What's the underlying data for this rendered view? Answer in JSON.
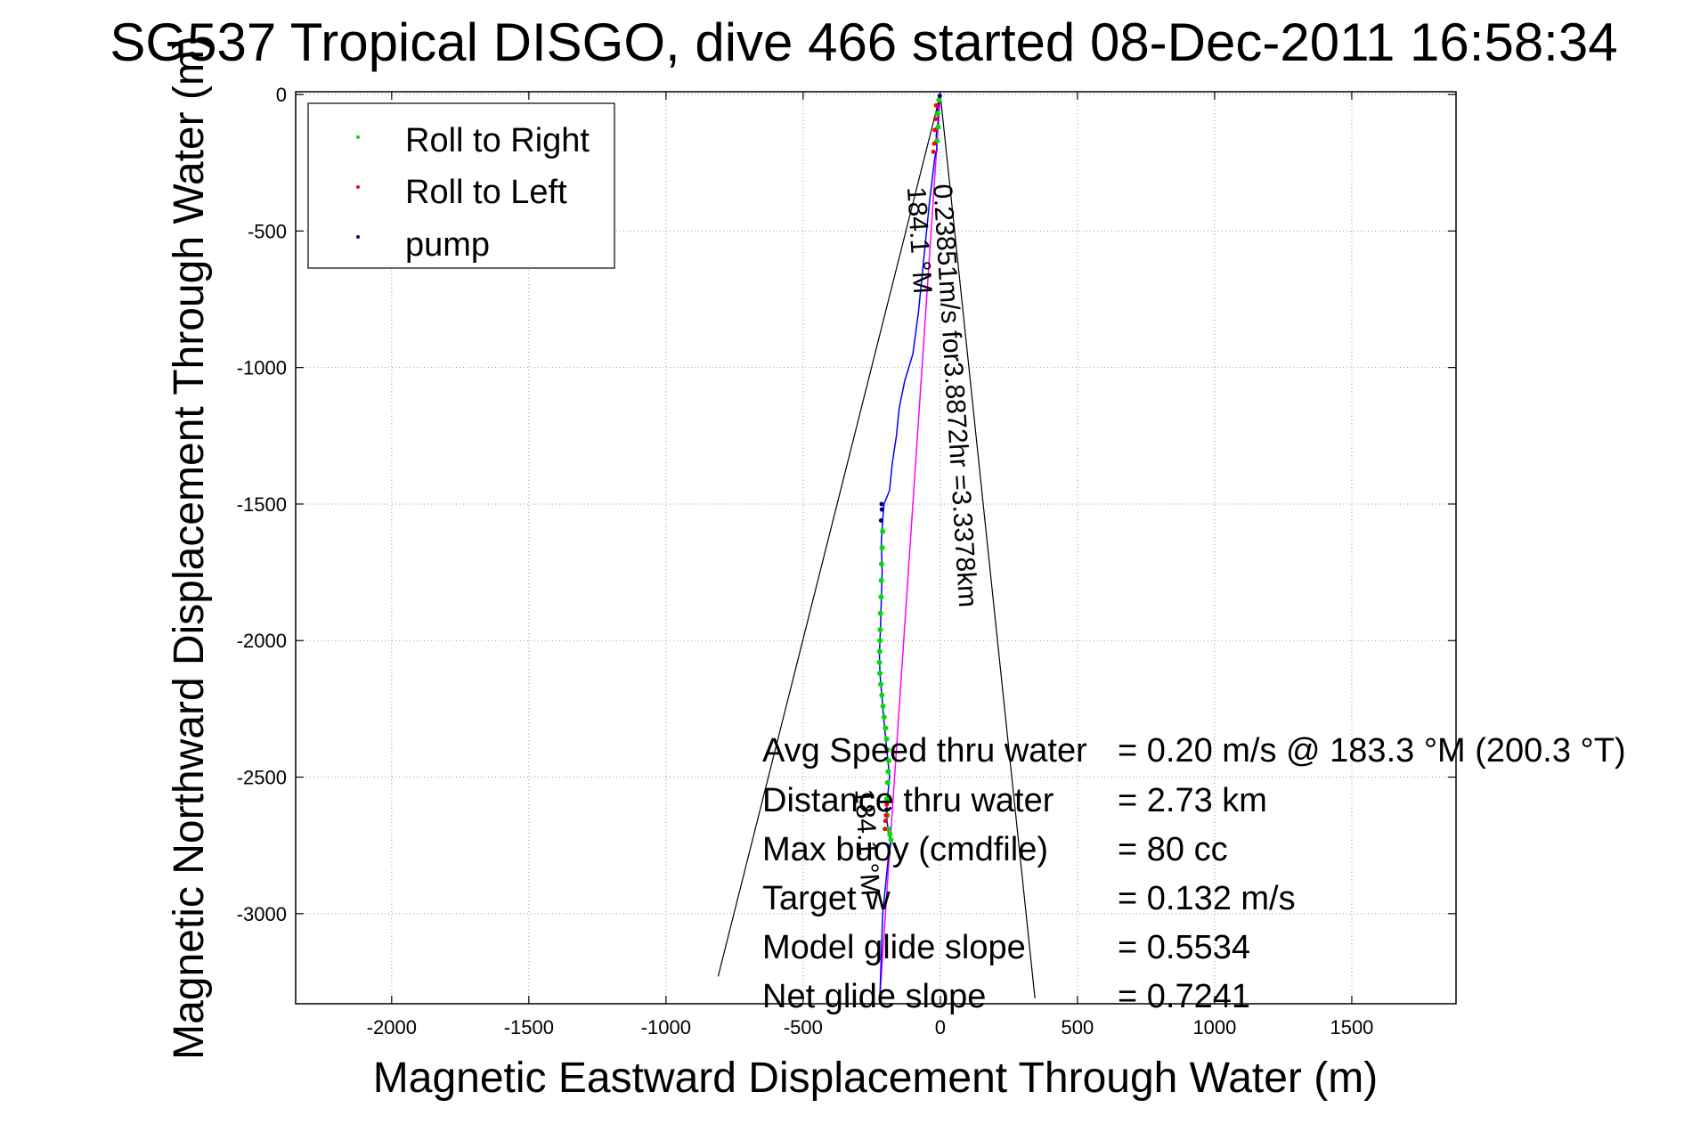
{
  "chart_data": {
    "type": "scatter",
    "title": "SG537 Tropical DISGO, dive 466 started 08-Dec-2011 16:58:34",
    "xlabel": "Magnetic Eastward Displacement Through Water (m)",
    "ylabel": "Magnetic Northward Displacement Through Water (m)",
    "xlim": [
      -2350,
      1880
    ],
    "ylim": [
      -3330,
      10
    ],
    "grid": true,
    "xticks": [
      -2000,
      -1500,
      -1000,
      -500,
      0,
      500,
      1000,
      1500
    ],
    "yticks": [
      0,
      -500,
      -1000,
      -1500,
      -2000,
      -2500,
      -3000
    ],
    "legend_position": "top-left",
    "legend": [
      {
        "label": "Roll to Right",
        "color": "#00dd00"
      },
      {
        "label": "Roll to Left",
        "color": "#ff0000"
      },
      {
        "label": "pump",
        "color": "#000080"
      }
    ],
    "colors": {
      "track": "#0000ff",
      "roll_right": "#00dd00",
      "roll_left": "#ff0000",
      "pump": "#000080",
      "current_line": "#ff00ff",
      "cone": "#000000"
    },
    "track": {
      "x": [
        0,
        -5,
        -10,
        -8,
        -15,
        -12,
        -20,
        -40,
        -60,
        -80,
        -100,
        -130,
        -150,
        -160,
        -175,
        -180,
        -185,
        -205,
        -210,
        -215,
        -212,
        -215,
        -218,
        -222,
        -220,
        -215,
        -210,
        -205,
        -200,
        -195,
        -190,
        -185,
        -190,
        -195,
        -195,
        -190,
        -185,
        -180,
        -190,
        -200,
        -210,
        -215,
        -220
      ],
      "y": [
        0,
        -30,
        -60,
        -100,
        -150,
        -200,
        -230,
        -400,
        -600,
        -800,
        -950,
        -1050,
        -1150,
        -1250,
        -1350,
        -1400,
        -1450,
        -1500,
        -1560,
        -1640,
        -1750,
        -1850,
        -1950,
        -2050,
        -2120,
        -2180,
        -2240,
        -2300,
        -2350,
        -2400,
        -2450,
        -2500,
        -2550,
        -2600,
        -2650,
        -2700,
        -2720,
        -2740,
        -2800,
        -2900,
        -3000,
        -3150,
        -3300
      ]
    },
    "roll_right": {
      "x": [
        -5,
        -10,
        -8,
        -12,
        -210,
        -212,
        -214,
        -215,
        -216,
        -218,
        -219,
        -220,
        -221,
        -222,
        -220,
        -217,
        -213,
        -209,
        -205,
        -200,
        -196,
        -192,
        -188,
        -190,
        -192,
        -195,
        -193,
        -189,
        -184,
        -180
      ],
      "y": [
        -20,
        -70,
        -120,
        -170,
        -1600,
        -1660,
        -1720,
        -1780,
        -1840,
        -1900,
        -1960,
        -2000,
        -2040,
        -2080,
        -2120,
        -2160,
        -2200,
        -2240,
        -2280,
        -2320,
        -2360,
        -2400,
        -2440,
        -2480,
        -2520,
        -2580,
        -2640,
        -2690,
        -2710,
        -2730
      ]
    },
    "roll_left": {
      "x": [
        -15,
        -18,
        -20,
        -22,
        -25,
        -195,
        -198,
        -200,
        -202
      ],
      "y": [
        -40,
        -90,
        -130,
        -180,
        -210,
        -2600,
        -2640,
        -2660,
        -2690
      ]
    },
    "pump": {
      "x": [
        -2,
        -214,
        -213,
        -216,
        -196
      ],
      "y": [
        -5,
        -1500,
        -1520,
        -1560,
        -2620
      ]
    },
    "current_line": {
      "x": [
        0,
        -220
      ],
      "y": [
        0,
        -3300
      ]
    },
    "cone_lines": [
      {
        "x": [
          0,
          -810
        ],
        "y": [
          0,
          -3230
        ]
      },
      {
        "x": [
          0,
          345
        ],
        "y": [
          0,
          -3310
        ]
      }
    ],
    "annotations": [
      {
        "text": "0.23851m/s for3.8872hr =3.3378km",
        "x": -25,
        "y": -330,
        "angle": 86.5
      },
      {
        "text": "184.1 °M",
        "x": -120,
        "y": -340,
        "angle": 86.5
      },
      {
        "text": "184.1 °M",
        "x": -310,
        "y": -2545,
        "angle": 86.5
      }
    ],
    "stats": [
      {
        "label": "Avg Speed thru water",
        "value": "=  0.20 m/s @ 183.3 °M (200.3 °T)"
      },
      {
        "label": "Distance thru water",
        "value": "=  2.73 km"
      },
      {
        "label": "Max buoy (cmdfile)",
        "value": "= 80 cc"
      },
      {
        "label": "Target w",
        "value": "= 0.132 m/s"
      },
      {
        "label": "Model glide slope",
        "value": "= 0.5534"
      },
      {
        "label": "Net glide slope",
        "value": "= 0.7241"
      }
    ]
  }
}
